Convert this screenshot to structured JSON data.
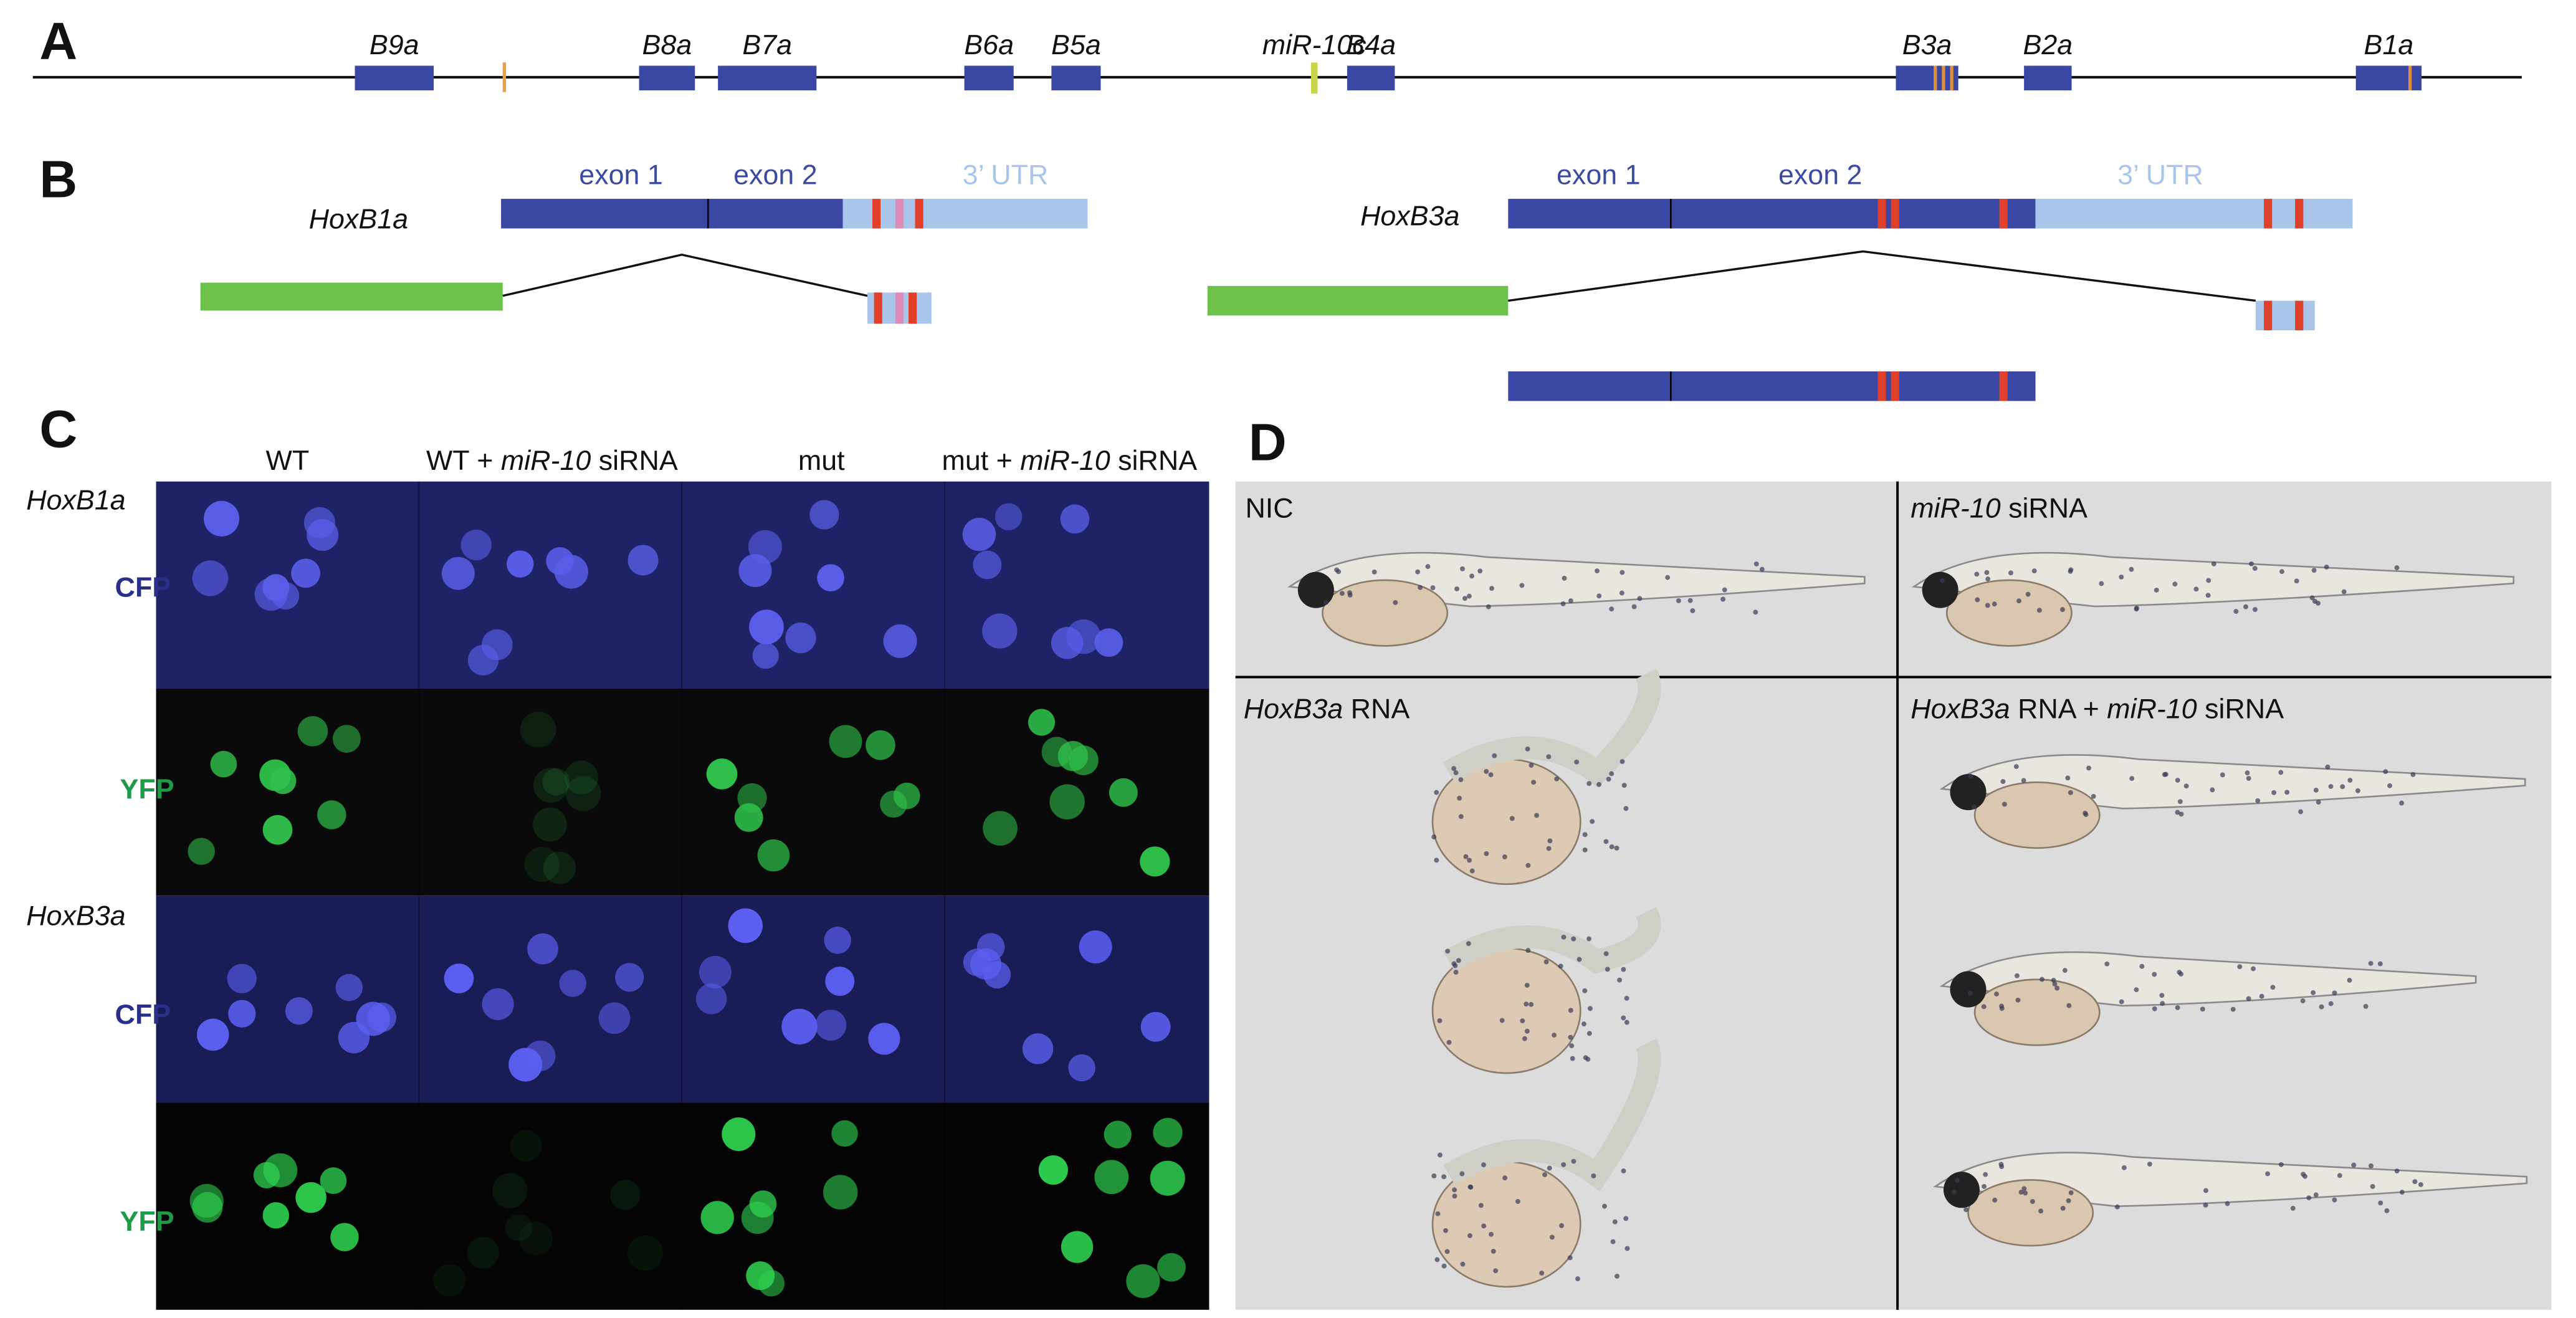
{
  "panel_a": {
    "label": "A",
    "genes": [
      "B9a",
      "B8a",
      "B7a",
      "B6a",
      "B5a",
      "miR-10c",
      "B4a",
      "B3a",
      "B2a",
      "B1a"
    ]
  },
  "panel_b": {
    "label": "B",
    "transcripts": [
      {
        "name": "HoxB1a",
        "exon_1": "exon 1",
        "exon_2": "exon 2",
        "utr": "3’ UTR"
      },
      {
        "name": "HoxB3a",
        "exon_1": "exon 1",
        "exon_2": "exon 2",
        "utr": "3’ UTR"
      }
    ]
  },
  "panel_c": {
    "label": "C",
    "columns": [
      [
        "WT"
      ],
      [
        "WT + ",
        "miR-10",
        " siRNA"
      ],
      [
        "mut"
      ],
      [
        "mut + ",
        "miR-10",
        " siRNA"
      ]
    ],
    "rows": [
      {
        "gene": "HoxB1a",
        "channels": [
          "CFP",
          "YFP"
        ]
      },
      {
        "gene": "HoxB3a",
        "channels": [
          "CFP",
          "YFP"
        ]
      }
    ]
  },
  "panel_d": {
    "label": "D",
    "conditions": [
      [
        "NIC"
      ],
      [
        "miR-10",
        " siRNA"
      ],
      [
        "HoxB3a",
        " RNA"
      ],
      [
        "HoxB3a",
        " RNA + ",
        "miR-10",
        " siRNA"
      ]
    ]
  }
}
